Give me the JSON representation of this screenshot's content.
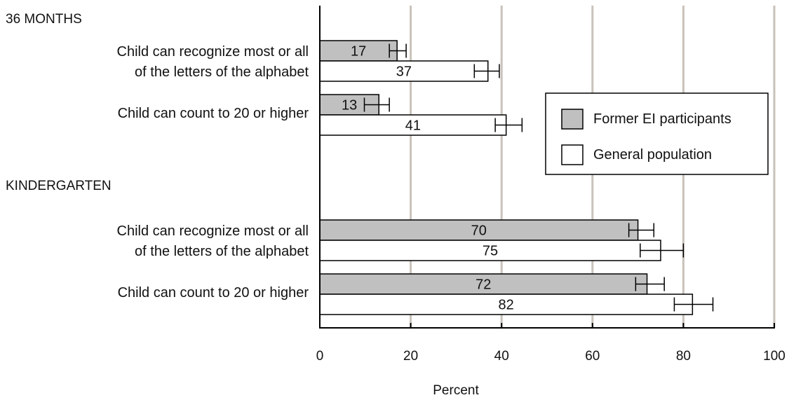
{
  "chart_data": {
    "type": "bar",
    "orientation": "horizontal",
    "xlabel": "Percent",
    "xlim": [
      0,
      100
    ],
    "xticks": [
      0,
      20,
      40,
      60,
      80,
      100
    ],
    "grid": true,
    "legend_position": "right-middle",
    "series_colors": {
      "former": "#c0c0c0",
      "general": "#ffffff"
    },
    "legend": [
      {
        "key": "former",
        "label": "Former EI participants"
      },
      {
        "key": "general",
        "label": "General population"
      }
    ],
    "groups": [
      {
        "title": "36 MONTHS",
        "items": [
          {
            "label_lines": [
              "Child can recognize most or all",
              "of the letters of the alphabet"
            ],
            "former": {
              "value": 17,
              "err_low": 15.3,
              "err_high": 19
            },
            "general": {
              "value": 37,
              "err_low": 34,
              "err_high": 39.5
            }
          },
          {
            "label_lines": [
              "Child can count to 20 or higher"
            ],
            "former": {
              "value": 13,
              "err_low": 9.8,
              "err_high": 15.3
            },
            "general": {
              "value": 41,
              "err_low": 38.6,
              "err_high": 44.5
            }
          }
        ]
      },
      {
        "title": "KINDERGARTEN",
        "items": [
          {
            "label_lines": [
              "Child can recognize most or all",
              "of the letters of the alphabet"
            ],
            "former": {
              "value": 70,
              "err_low": 68,
              "err_high": 73.5
            },
            "general": {
              "value": 75,
              "err_low": 70.5,
              "err_high": 80
            }
          },
          {
            "label_lines": [
              "Child can count to 20 or higher"
            ],
            "former": {
              "value": 72,
              "err_low": 69.5,
              "err_high": 75.8
            },
            "general": {
              "value": 82,
              "err_low": 78,
              "err_high": 86.5
            }
          }
        ]
      }
    ]
  }
}
